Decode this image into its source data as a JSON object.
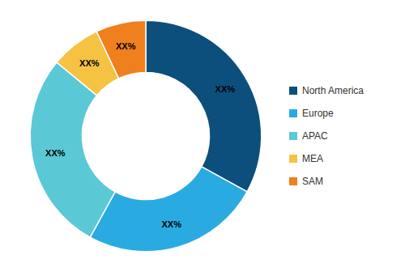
{
  "chart_data": {
    "type": "pie",
    "categories": [
      "North America",
      "Europe",
      "APAC",
      "MEA",
      "SAM"
    ],
    "values": [
      33,
      25,
      28,
      7,
      7
    ],
    "value_labels": [
      "XX%",
      "XX%",
      "XX%",
      "XX%",
      "XX%"
    ],
    "colors": [
      "#0d4f7c",
      "#29abe2",
      "#5bc8d5",
      "#f5c242",
      "#f07f1e"
    ],
    "data_labels": true,
    "legend": "right"
  }
}
